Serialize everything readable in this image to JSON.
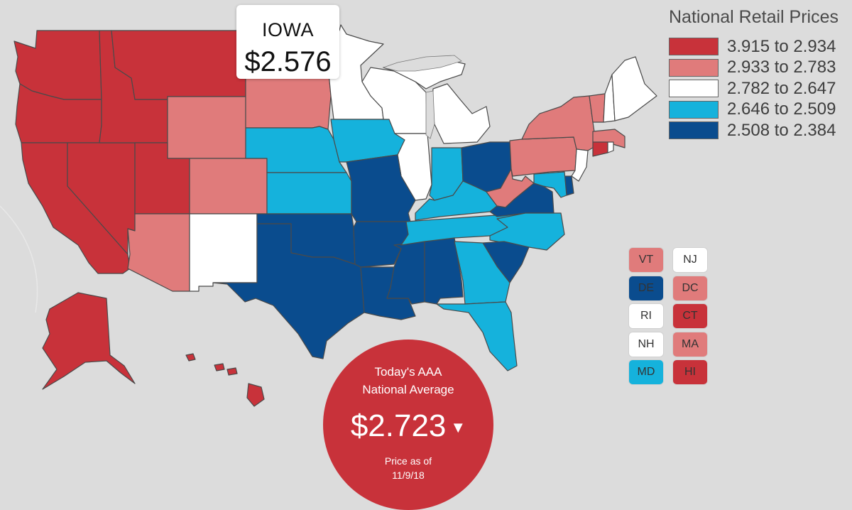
{
  "legend": {
    "title": "National Retail Prices",
    "ranges": [
      {
        "label": "3.915 to 2.934",
        "color": "#c8323a"
      },
      {
        "label": "2.933 to 2.783",
        "color": "#e07b7b"
      },
      {
        "label": "2.782 to 2.647",
        "color": "#ffffff"
      },
      {
        "label": "2.646 to 2.509",
        "color": "#15b2dc"
      },
      {
        "label": "2.508 to 2.384",
        "color": "#0a4c8e"
      }
    ]
  },
  "tooltip": {
    "state": "IOWA",
    "price": "$2.576"
  },
  "national_average": {
    "title": "Today's AAA National Average",
    "price": "$2.723",
    "trend_icon": "down-triangle-icon",
    "date_text": "Price as of 11/9/18"
  },
  "small_states": [
    {
      "code": "VT",
      "color": "#e07b7b"
    },
    {
      "code": "NJ",
      "color": "#ffffff"
    },
    {
      "code": "DE",
      "color": "#0a4c8e"
    },
    {
      "code": "DC",
      "color": "#e07b7b"
    },
    {
      "code": "RI",
      "color": "#ffffff"
    },
    {
      "code": "CT",
      "color": "#c8323a"
    },
    {
      "code": "NH",
      "color": "#ffffff"
    },
    {
      "code": "MA",
      "color": "#e07b7b"
    },
    {
      "code": "MD",
      "color": "#15b2dc"
    },
    {
      "code": "HI",
      "color": "#c8323a"
    }
  ],
  "state_tiers": {
    "WA": 0,
    "OR": 0,
    "CA": 0,
    "NV": 0,
    "ID": 0,
    "MT": 0,
    "UT": 0,
    "AK": 0,
    "HI": 0,
    "CT": 0,
    "WY": 1,
    "CO": 1,
    "AZ": 1,
    "SD": 1,
    "PA": 1,
    "NY": 1,
    "WV": 1,
    "VT": 1,
    "MA": 1,
    "DC": 1,
    "NM": 2,
    "ND": 2,
    "MN": 2,
    "WI": 2,
    "MI": 2,
    "IL": 2,
    "ME": 2,
    "NH": 2,
    "NJ": 2,
    "RI": 2,
    "NE": 3,
    "KS": 3,
    "IA": 3,
    "IN": 3,
    "KY": 3,
    "TN": 3,
    "NC": 3,
    "GA": 3,
    "FL": 3,
    "MD": 3,
    "TX": 4,
    "OK": 4,
    "MO": 4,
    "AR": 4,
    "LA": 4,
    "MS": 4,
    "AL": 4,
    "OH": 4,
    "VA": 4,
    "SC": 4,
    "DE": 4
  }
}
